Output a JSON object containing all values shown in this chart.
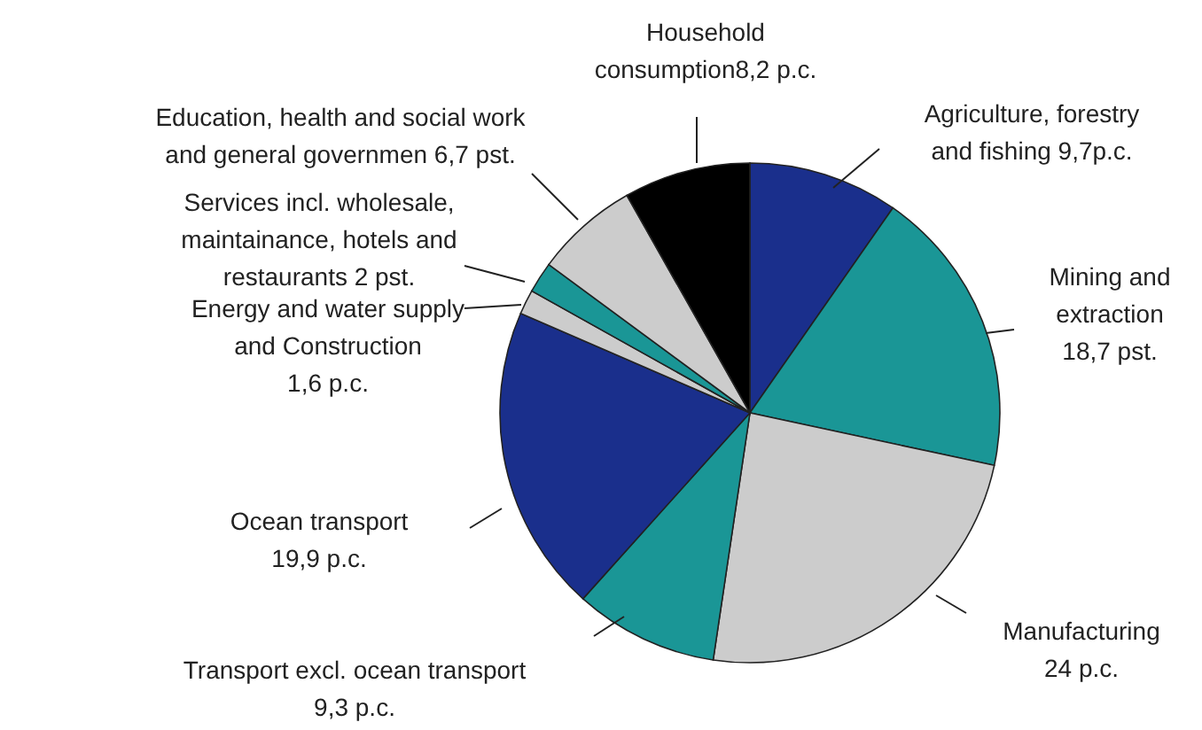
{
  "chart_data": {
    "type": "pie",
    "categories": [
      "Agriculture, forestry\nand fishing",
      "Mining and\nextraction",
      "Manufacturing",
      "Transport excl. ocean transport",
      "Ocean transport",
      "Energy and water supply\nand Construction",
      "Services incl. wholesale,\nmaintainance, hotels and\nrestaurants",
      "Education, health and social work\nand general governmen",
      "Household\nconsumption"
    ],
    "values": [
      9.7,
      18.7,
      24,
      9.3,
      19.9,
      1.6,
      2,
      6.7,
      8.2
    ],
    "value_labels": [
      "9,7p.c.",
      "18,7 pst.",
      "24 p.c.",
      "9,3 p.c.",
      "19,9 p.c.",
      "1,6 p.c.",
      "2 pst.",
      "6,7 pst.",
      "8,2 p.c."
    ],
    "colors": [
      "#1a2f8c",
      "#1a9696",
      "#cccccc",
      "#1a9696",
      "#1a2f8c",
      "#cccccc",
      "#1a9696",
      "#cccccc",
      "#000000"
    ]
  }
}
